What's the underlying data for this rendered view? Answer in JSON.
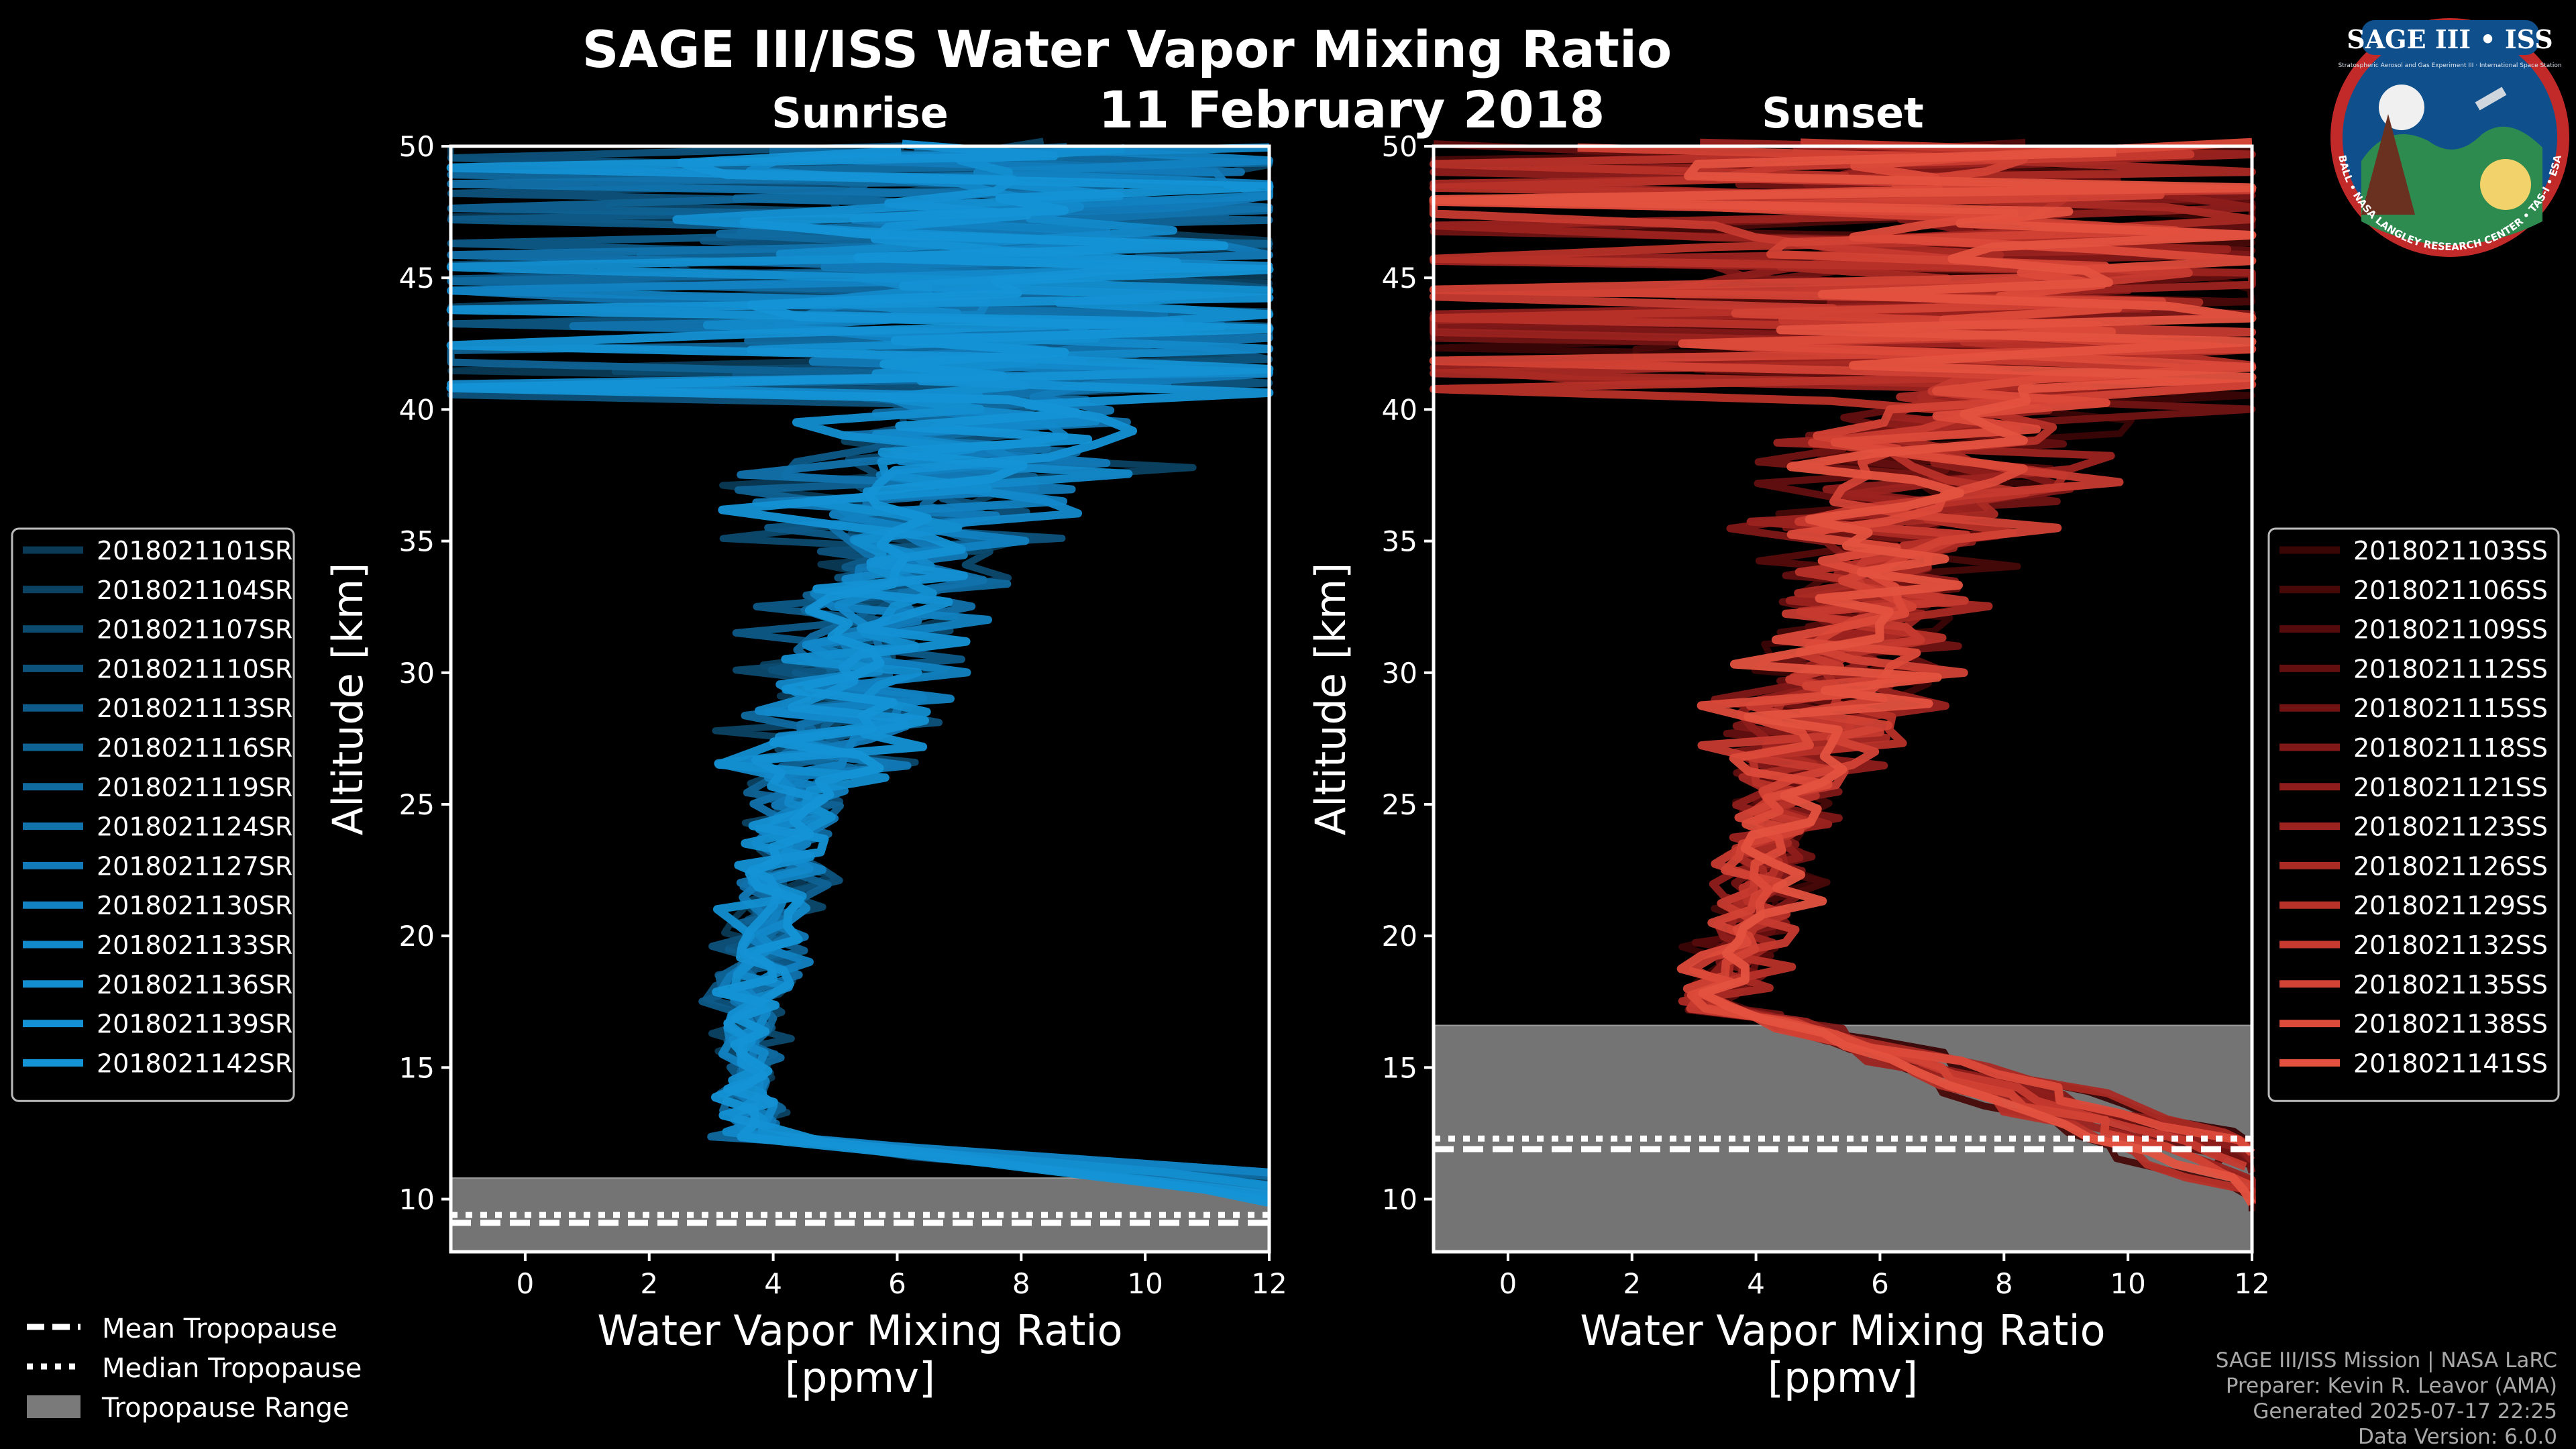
{
  "title": "SAGE III/ISS Water Vapor Mixing Ratio",
  "date": "11 February 2018",
  "colors": {
    "background": "#000000",
    "sunrise": "#1493d6",
    "sunset": "#e4523f",
    "tropopause_range": "#7a7a7a"
  },
  "legend_bottom": {
    "mean": "Mean Tropopause",
    "median": "Median Tropopause",
    "range": "Tropopause Range"
  },
  "footer": {
    "line1": "SAGE III/ISS Mission | NASA LaRC",
    "line2": "Preparer: Kevin R. Leavor (AMA)",
    "line3": "Generated 2025-07-17 22:25",
    "line4": "Data Version: 6.0.0"
  },
  "logo": {
    "title": "SAGE III • ISS",
    "subtitle": "Stratospheric Aerosol and Gas Experiment III · International Space Station",
    "ring": "BALL • NASA LANGLEY RESEARCH CENTER • TAS-I • ESA",
    "icon": "mission-patch-icon"
  },
  "chart_data": [
    {
      "type": "line",
      "panel": "sunrise",
      "subtitle": "Sunrise",
      "xlabel": "Water Vapor Mixing Ratio\n[ppmv]",
      "ylabel": "Altitude [km]",
      "xlim": [
        -1.2,
        12
      ],
      "ylim": [
        8,
        50
      ],
      "xticks": [
        0,
        2,
        4,
        6,
        8,
        10,
        12
      ],
      "yticks": [
        10,
        15,
        20,
        25,
        30,
        35,
        40,
        45,
        50
      ],
      "tropopause": {
        "mean": 9.1,
        "median": 9.4,
        "range": [
          8,
          10.8
        ]
      },
      "legend_position": "left",
      "series": [
        {
          "name": "2018021101SR",
          "color": "#0a3a55"
        },
        {
          "name": "2018021104SR",
          "color": "#0b4262"
        },
        {
          "name": "2018021107SR",
          "color": "#0c4a6e"
        },
        {
          "name": "2018021110SR",
          "color": "#0d527b"
        },
        {
          "name": "2018021113SR",
          "color": "#0e5a88"
        },
        {
          "name": "2018021116SR",
          "color": "#0f6294"
        },
        {
          "name": "2018021119SR",
          "color": "#106aa0"
        },
        {
          "name": "2018021124SR",
          "color": "#1172ac"
        },
        {
          "name": "2018021127SR",
          "color": "#127ab8"
        },
        {
          "name": "2018021130SR",
          "color": "#1282c2"
        },
        {
          "name": "2018021133SR",
          "color": "#1389ca"
        },
        {
          "name": "2018021136SR",
          "color": "#138ed0"
        },
        {
          "name": "2018021139SR",
          "color": "#1491d4"
        },
        {
          "name": "2018021142SR",
          "color": "#1493d6"
        }
      ]
    },
    {
      "type": "line",
      "panel": "sunset",
      "subtitle": "Sunset",
      "xlabel": "Water Vapor Mixing Ratio\n[ppmv]",
      "ylabel": "Altitude [km]",
      "xlim": [
        -1.2,
        12
      ],
      "ylim": [
        8,
        50
      ],
      "xticks": [
        0,
        2,
        4,
        6,
        8,
        10,
        12
      ],
      "yticks": [
        10,
        15,
        20,
        25,
        30,
        35,
        40,
        45,
        50
      ],
      "tropopause": {
        "mean": 11.9,
        "median": 12.3,
        "range": [
          8,
          16.6
        ]
      },
      "legend_position": "right",
      "series": [
        {
          "name": "2018021103SS",
          "color": "#3a0505"
        },
        {
          "name": "2018021106SS",
          "color": "#470808"
        },
        {
          "name": "2018021109SS",
          "color": "#550b0b"
        },
        {
          "name": "2018021112SS",
          "color": "#630f0f"
        },
        {
          "name": "2018021115SS",
          "color": "#711313"
        },
        {
          "name": "2018021118SS",
          "color": "#801818"
        },
        {
          "name": "2018021121SS",
          "color": "#8e1d1b"
        },
        {
          "name": "2018021123SS",
          "color": "#9c231f"
        },
        {
          "name": "2018021126SS",
          "color": "#aa2a24"
        },
        {
          "name": "2018021129SS",
          "color": "#b83229"
        },
        {
          "name": "2018021132SS",
          "color": "#c63a2f"
        },
        {
          "name": "2018021135SS",
          "color": "#d24235"
        },
        {
          "name": "2018021138SS",
          "color": "#dc4a3a"
        },
        {
          "name": "2018021141SS",
          "color": "#e4523f"
        }
      ]
    }
  ]
}
